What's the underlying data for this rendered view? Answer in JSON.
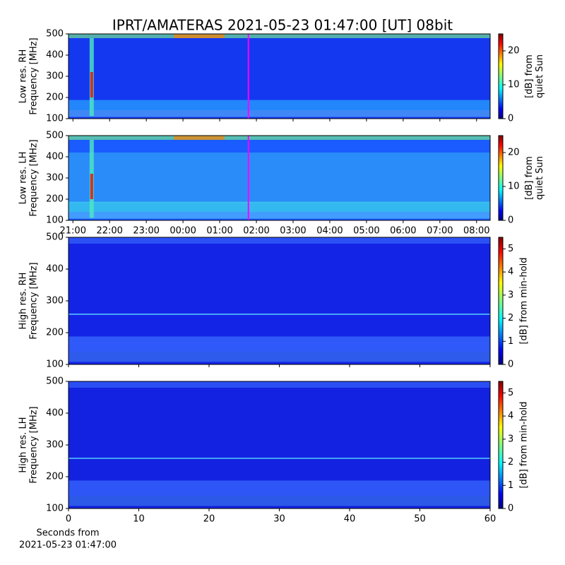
{
  "title": "IPRT/AMATERAS 2021-05-23 01:47:00 [UT]   08bit",
  "chart_data": [
    {
      "type": "heatmap",
      "cmap": "jet",
      "ylabel": [
        "Low res. RH",
        "Frequency [MHz]"
      ],
      "ylim": [
        100,
        500
      ],
      "yticks": [
        100,
        200,
        300,
        400,
        500
      ],
      "xlim": [
        20.88,
        32.37
      ],
      "xticks": [
        21,
        22,
        23,
        24,
        25,
        26,
        27,
        28,
        29,
        30,
        31,
        32
      ],
      "marker": 25.783,
      "marker_color": "#ff00ff",
      "colorbar_label": [
        "[dB] from",
        "quiet Sun"
      ],
      "clim": [
        0,
        25
      ],
      "cticks": [
        0,
        10,
        20
      ]
    },
    {
      "type": "heatmap",
      "cmap": "jet",
      "ylabel": [
        "Low res. LH",
        "Frequency [MHz]"
      ],
      "ylim": [
        100,
        500
      ],
      "yticks": [
        100,
        200,
        300,
        400,
        500
      ],
      "xlim": [
        20.88,
        32.37
      ],
      "xticks": [
        {
          "value": 21,
          "label": "21:00"
        },
        {
          "value": 22,
          "label": "22:00"
        },
        {
          "value": 23,
          "label": "23:00"
        },
        {
          "value": 24,
          "label": "00:00"
        },
        {
          "value": 25,
          "label": "01:00"
        },
        {
          "value": 26,
          "label": "02:00"
        },
        {
          "value": 27,
          "label": "03:00"
        },
        {
          "value": 28,
          "label": "04:00"
        },
        {
          "value": 29,
          "label": "05:00"
        },
        {
          "value": 30,
          "label": "06:00"
        },
        {
          "value": 31,
          "label": "07:00"
        },
        {
          "value": 32,
          "label": "08:00"
        }
      ],
      "marker": 25.783,
      "marker_color": "#ff00ff",
      "colorbar_label": [
        "[dB] from",
        "quiet Sun"
      ],
      "clim": [
        0,
        25
      ],
      "cticks": [
        0,
        10,
        20
      ]
    },
    {
      "type": "heatmap",
      "cmap": "jet",
      "ylabel": [
        "High res. RH",
        "Frequency [MHz]"
      ],
      "ylim": [
        100,
        500
      ],
      "yticks": [
        100,
        200,
        300,
        400,
        500
      ],
      "xlim": [
        0,
        60
      ],
      "xticks": [
        0,
        10,
        20,
        30,
        40,
        50,
        60
      ],
      "colorbar_label": [
        "[dB] from min-hold"
      ],
      "clim": [
        0,
        5.5
      ],
      "cticks": [
        0,
        1,
        2,
        3,
        4,
        5
      ]
    },
    {
      "type": "heatmap",
      "cmap": "jet",
      "ylabel": [
        "High res. LH",
        "Frequency [MHz]"
      ],
      "ylim": [
        100,
        500
      ],
      "yticks": [
        100,
        200,
        300,
        400,
        500
      ],
      "xlim": [
        0,
        60
      ],
      "xticks": [
        0,
        10,
        20,
        30,
        40,
        50,
        60
      ],
      "xticks_labeled": true,
      "xlabel": [
        "Seconds from",
        "2021-05-23 01:47:00"
      ],
      "colorbar_label": [
        "[dB] from min-hold"
      ],
      "clim": [
        0,
        5.5
      ],
      "cticks": [
        0,
        1,
        2,
        3,
        4,
        5
      ]
    }
  ]
}
